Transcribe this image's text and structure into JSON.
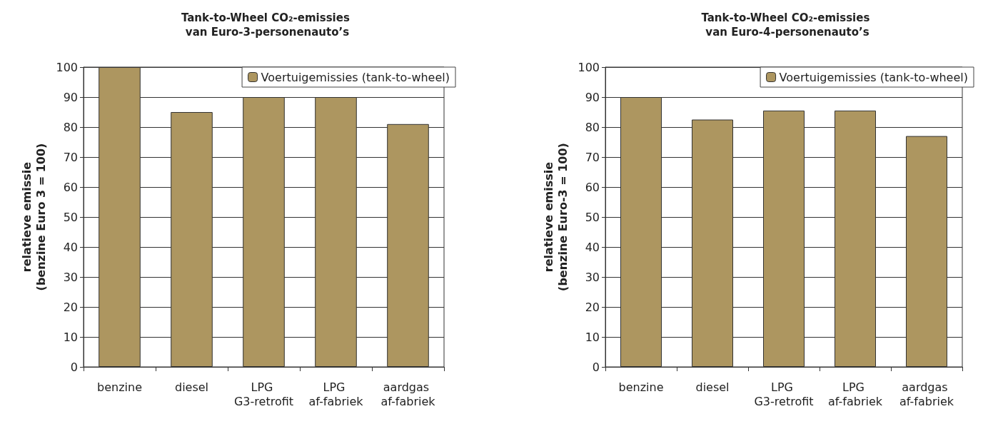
{
  "chart_data": [
    {
      "type": "bar",
      "title": "Tank-to-Wheel CO₂-emissies van Euro-3-personenauto’s",
      "ylabel": "relatieve emissie (benzine Euro 3 = 100)",
      "categories": [
        "benzine",
        "diesel",
        "LPG G3-retrofit",
        "LPG af-fabriek",
        "aardgas af-fabriek"
      ],
      "series": [
        {
          "name": "Voertuigemissies (tank-to-wheel)",
          "color": "#ad9660",
          "values": [
            100,
            85,
            90,
            90,
            81
          ]
        }
      ],
      "ylim": [
        0,
        100
      ],
      "yticks": [
        0,
        10,
        20,
        30,
        40,
        50,
        60,
        70,
        80,
        90,
        100
      ],
      "grid": "y",
      "legend": "top right"
    },
    {
      "type": "bar",
      "title": "Tank-to-Wheel CO₂-emissies van Euro-4-personenauto’s",
      "ylabel": "relatieve emissie (benzine Euro-3 = 100)",
      "categories": [
        "benzine",
        "diesel",
        "LPG G3-retrofit",
        "LPG af-fabriek",
        "aardgas af-fabriek"
      ],
      "series": [
        {
          "name": "Voertuigemissies (tank-to-wheel)",
          "color": "#ad9660",
          "values": [
            90,
            82.5,
            85.5,
            85.5,
            77
          ]
        }
      ],
      "ylim": [
        0,
        100
      ],
      "yticks": [
        0,
        10,
        20,
        30,
        40,
        50,
        60,
        70,
        80,
        90,
        100
      ],
      "grid": "y",
      "legend": "top right"
    }
  ]
}
